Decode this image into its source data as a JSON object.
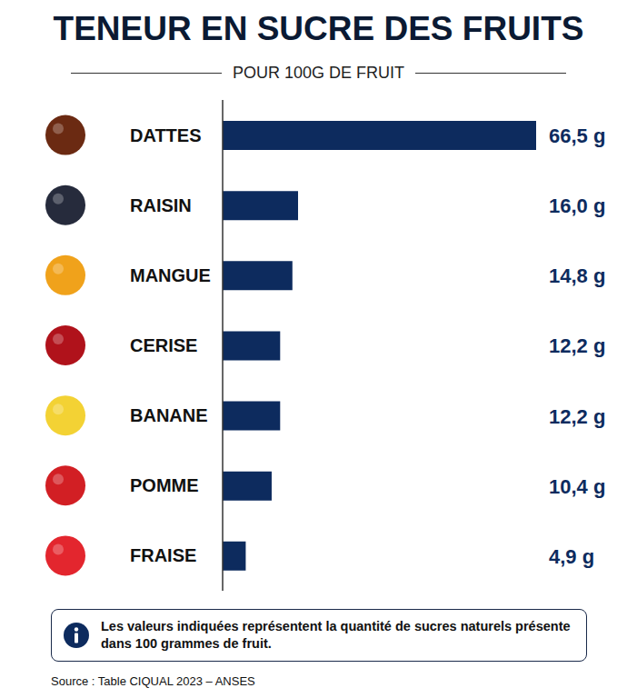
{
  "chart_data": {
    "type": "bar",
    "title": "TENEUR EN SUCRE DES FRUITS",
    "subtitle": "POUR 100G DE FRUIT",
    "categories": [
      "DATTES",
      "RAISIN",
      "MANGUE",
      "CERISE",
      "BANANE",
      "POMME",
      "FRAISE"
    ],
    "values": [
      66.5,
      16.0,
      14.8,
      12.2,
      12.2,
      10.4,
      4.9
    ],
    "value_labels": [
      "66,5 g",
      "16,0 g",
      "14,8 g",
      "12,2 g",
      "12,2 g",
      "10,4 g",
      "4,9 g"
    ],
    "color": "#0d2b5e",
    "orientation": "horizontal",
    "data_labels": true,
    "tick_labels": "y",
    "grid": false,
    "xlim": [
      0,
      66.5
    ],
    "xticks": [],
    "note": "Les valeurs indiquées représentent la quantité de sucres naturels présente dans 100 grammes de fruit.",
    "source": "Source : Table CIQUAL 2023 – ANSES"
  }
}
